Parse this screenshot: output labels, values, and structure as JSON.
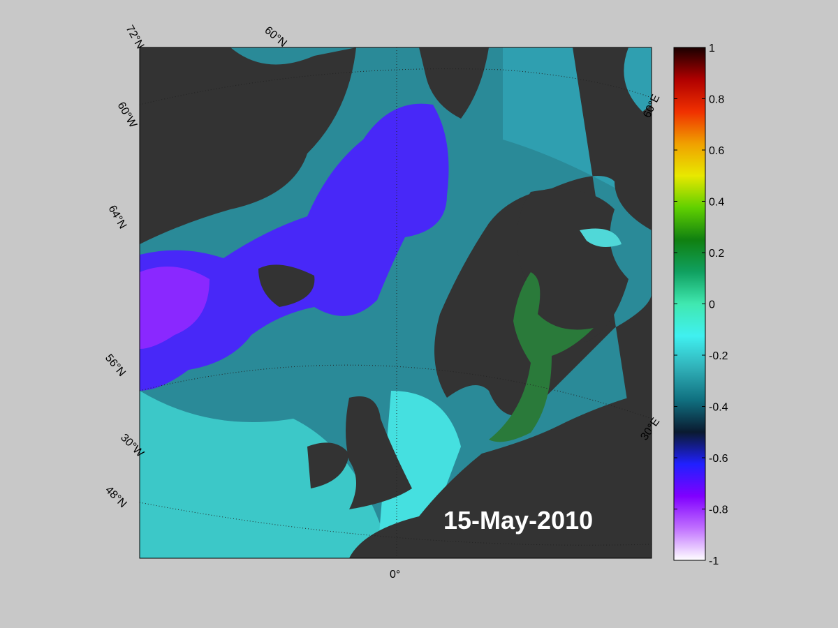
{
  "map": {
    "date_label": "15-May-2010",
    "graticule_labels": [
      "72°N",
      "60°N",
      "60°W",
      "64°N",
      "56°N",
      "30°W",
      "48°N",
      "0°",
      "60°E",
      "30°E"
    ]
  },
  "colorbar": {
    "lim": [
      -1,
      1
    ],
    "ticks": [
      1,
      0.8,
      0.6,
      0.4,
      0.2,
      0,
      -0.2,
      -0.4,
      -0.6,
      -0.8,
      -1
    ],
    "colors": [
      "#1a0000",
      "#b00000",
      "#f03000",
      "#f0a000",
      "#e8e800",
      "#60d000",
      "#108010",
      "#10a060",
      "#40e8b0",
      "#40f0f0",
      "#30b0b8",
      "#107080",
      "#0a1a30",
      "#2020ff",
      "#8000ff",
      "#c070ff",
      "#ffffff"
    ]
  }
}
